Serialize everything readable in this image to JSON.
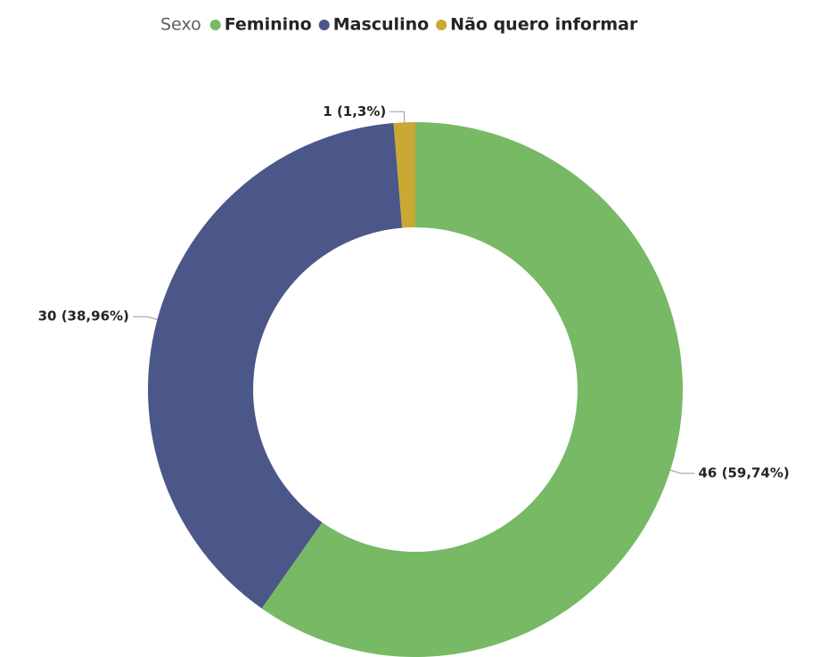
{
  "chart_data": {
    "type": "donut",
    "legend_title": "Sexo",
    "categories": [
      "Feminino",
      "Masculino",
      "Não quero informar"
    ],
    "values": [
      46,
      30,
      1
    ],
    "value_labels": [
      "46 (59,74%)",
      "30 (38,96%)",
      "1 (1,3%)"
    ],
    "colors": [
      "#77b964",
      "#4a5788",
      "#c9a833"
    ],
    "legend": "top"
  }
}
